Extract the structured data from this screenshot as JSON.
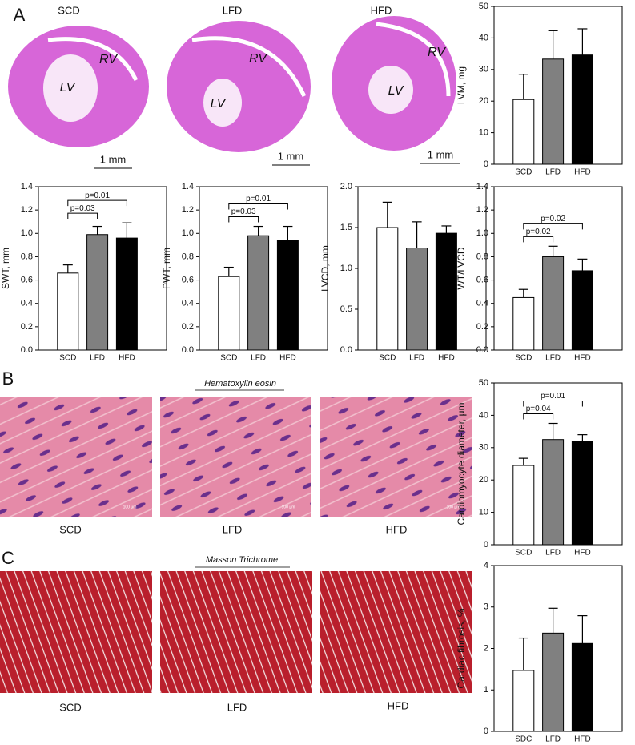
{
  "figure": {
    "panel_labels": [
      "A",
      "B",
      "C"
    ],
    "panel_a": {
      "images": [
        {
          "label": "SCD",
          "rv": "RV",
          "lv": "LV",
          "scale": "1 mm"
        },
        {
          "label": "LFD",
          "rv": "RV",
          "lv": "LV",
          "scale": "1 mm"
        },
        {
          "label": "HFD",
          "rv": "RV",
          "lv": "LV",
          "scale": "1 mm"
        }
      ]
    },
    "panel_b": {
      "title": "Hematoxylin eosin",
      "images": [
        {
          "label": "SCD",
          "scale": "100 μm"
        },
        {
          "label": "LFD",
          "scale": "100 μm"
        },
        {
          "label": "HFD",
          "scale": "100 μm"
        }
      ]
    },
    "panel_c": {
      "title": "Masson Trichrome",
      "images": [
        {
          "label": "SCD"
        },
        {
          "label": "LFD"
        },
        {
          "label": "HFD"
        }
      ]
    }
  },
  "chart_data": [
    {
      "type": "bar",
      "ylabel": "LVM, mg",
      "categories": [
        "SCD",
        "LFD",
        "HFD"
      ],
      "values": [
        20.5,
        33.3,
        34.6
      ],
      "errors": [
        8,
        9,
        8.3
      ],
      "colors": [
        "#ffffff",
        "#808080",
        "#000000"
      ],
      "ylim": [
        0,
        50
      ],
      "yticks": [
        0,
        10,
        20,
        30,
        40,
        50
      ],
      "annotations": []
    },
    {
      "type": "bar",
      "ylabel": "SWT, mm",
      "categories": [
        "SCD",
        "LFD",
        "HFD"
      ],
      "values": [
        0.66,
        0.99,
        0.96
      ],
      "errors": [
        0.07,
        0.07,
        0.13
      ],
      "colors": [
        "#ffffff",
        "#808080",
        "#000000"
      ],
      "ylim": [
        0,
        1.4
      ],
      "yticks": [
        {
          "value": 0,
          "label": "0.0"
        },
        0.2,
        0.4,
        0.6,
        0.8,
        {
          "value": 1,
          "label": "1.0"
        },
        1.2,
        1.4
      ],
      "annotations": [
        {
          "text": "p=0.03",
          "between": [
            0,
            1
          ]
        },
        {
          "text": "p=0.01",
          "between": [
            0,
            2
          ]
        }
      ]
    },
    {
      "type": "bar",
      "ylabel": "PWT, mm",
      "categories": [
        "SCD",
        "LFD",
        "HFD"
      ],
      "values": [
        0.63,
        0.98,
        0.94
      ],
      "errors": [
        0.08,
        0.08,
        0.12
      ],
      "colors": [
        "#ffffff",
        "#808080",
        "#000000"
      ],
      "ylim": [
        0,
        1.4
      ],
      "yticks": [
        {
          "value": 0,
          "label": "0.0"
        },
        0.2,
        0.4,
        0.6,
        0.8,
        {
          "value": 1,
          "label": "1.0"
        },
        1.2,
        1.4
      ],
      "annotations": [
        {
          "text": "p=0.03",
          "between": [
            0,
            1
          ]
        },
        {
          "text": "p=0.01",
          "between": [
            0,
            2
          ]
        }
      ]
    },
    {
      "type": "bar",
      "ylabel": "LVCD, mm",
      "categories": [
        "SCD",
        "LFD",
        "HFD"
      ],
      "values": [
        1.5,
        1.25,
        1.43
      ],
      "errors": [
        0.31,
        0.32,
        0.09
      ],
      "colors": [
        "#ffffff",
        "#808080",
        "#000000"
      ],
      "ylim": [
        0,
        2
      ],
      "yticks": [
        {
          "value": 0,
          "label": "0.0"
        },
        0.5,
        {
          "value": 1,
          "label": "1.0"
        },
        1.5,
        {
          "value": 2,
          "label": "2.0"
        }
      ],
      "annotations": []
    },
    {
      "type": "bar",
      "ylabel": "WT/LVCD",
      "categories": [
        "SCD",
        "LFD",
        "HFD"
      ],
      "values": [
        0.45,
        0.8,
        0.68
      ],
      "errors": [
        0.07,
        0.09,
        0.1
      ],
      "colors": [
        "#ffffff",
        "#808080",
        "#000000"
      ],
      "ylim": [
        0,
        1.4
      ],
      "yticks": [
        {
          "value": 0,
          "label": "0.0"
        },
        0.2,
        0.4,
        0.6,
        0.8,
        {
          "value": 1,
          "label": "1.0"
        },
        1.2,
        1.4
      ],
      "annotations": [
        {
          "text": "p=0.02",
          "between": [
            0,
            1
          ]
        },
        {
          "text": "p=0.02",
          "between": [
            0,
            2
          ]
        }
      ]
    },
    {
      "type": "bar",
      "ylabel": "Cardiomyocyte diameter, μm",
      "categories": [
        "SCD",
        "LFD",
        "HFD"
      ],
      "values": [
        24.5,
        32.5,
        32
      ],
      "errors": [
        2.2,
        5,
        2
      ],
      "colors": [
        "#ffffff",
        "#808080",
        "#000000"
      ],
      "ylim": [
        0,
        50
      ],
      "yticks": [
        0,
        10,
        20,
        30,
        40,
        50
      ],
      "annotations": [
        {
          "text": "p=0.04",
          "between": [
            0,
            1
          ]
        },
        {
          "text": "p=0.01",
          "between": [
            0,
            2
          ]
        }
      ]
    },
    {
      "type": "bar",
      "ylabel": "Cardiac fibrosis, %",
      "categories": [
        "SDC",
        "LFD",
        "HFD"
      ],
      "values": [
        1.47,
        2.37,
        2.12
      ],
      "errors": [
        0.78,
        0.6,
        0.67
      ],
      "colors": [
        "#ffffff",
        "#808080",
        "#000000"
      ],
      "ylim": [
        0,
        4
      ],
      "yticks": [
        0,
        1,
        2,
        3,
        4
      ],
      "annotations": []
    }
  ]
}
